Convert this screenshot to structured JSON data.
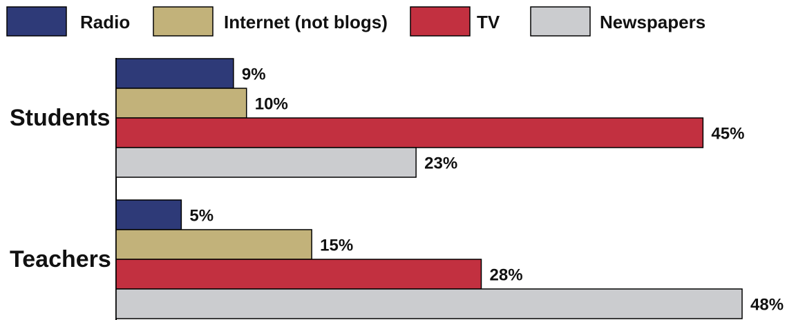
{
  "chart_data": {
    "type": "bar",
    "orientation": "horizontal",
    "categories": [
      "Students",
      "Teachers"
    ],
    "series": [
      {
        "name": "Radio",
        "color": "#2e3a78",
        "values": [
          9,
          5
        ]
      },
      {
        "name": "Internet (not blogs)",
        "color": "#c2b27a",
        "values": [
          10,
          15
        ]
      },
      {
        "name": "TV",
        "color": "#c23040",
        "values": [
          45,
          28
        ]
      },
      {
        "name": "Newspapers",
        "color": "#cbcccf",
        "values": [
          23,
          48
        ]
      }
    ],
    "value_suffix": "%",
    "xlim": [
      0,
      48
    ],
    "grid": false,
    "legend_position": "top"
  }
}
